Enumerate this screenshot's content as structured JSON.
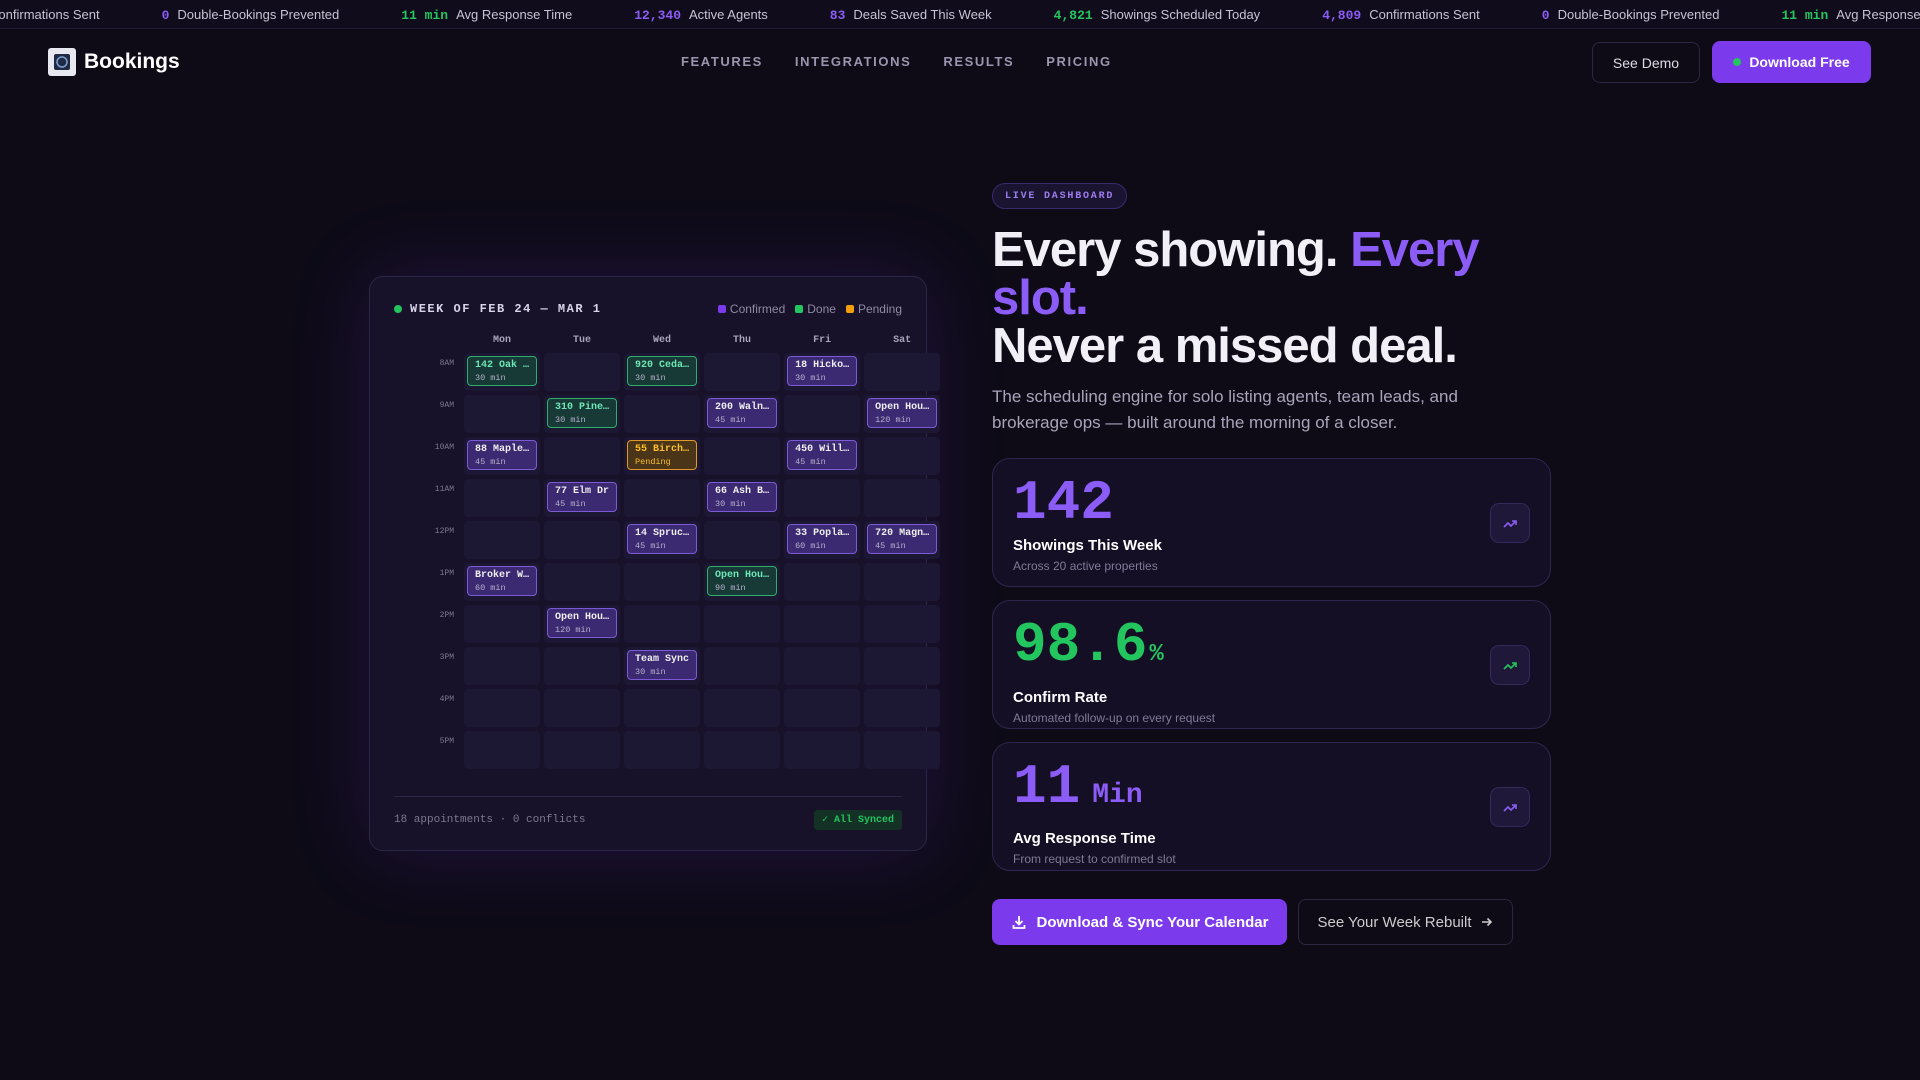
{
  "ticker": [
    {
      "value": "4,809",
      "label": "Confirmations Sent"
    },
    {
      "value": "0",
      "label": "Double-Bookings Prevented"
    },
    {
      "value": "11 min",
      "label": "Avg Response Time"
    },
    {
      "value": "12,340",
      "label": "Active Agents"
    },
    {
      "value": "83",
      "label": "Deals Saved This Week"
    },
    {
      "value": "4,821",
      "label": "Showings Scheduled Today"
    }
  ],
  "nav": {
    "brand": "Bookings",
    "links": [
      "FEATURES",
      "INTEGRATIONS",
      "RESULTS",
      "PRICING"
    ],
    "secondary": "See Demo",
    "primary": "Download Free"
  },
  "calendar": {
    "title": "WEEK OF FEB 24 — MAR 1",
    "legend": [
      {
        "label": "Confirmed",
        "status": "confirmed"
      },
      {
        "label": "Done",
        "status": "done"
      },
      {
        "label": "Pending",
        "status": "pending"
      }
    ],
    "days": [
      "Mon",
      "Tue",
      "Wed",
      "Thu",
      "Fri",
      "Sat"
    ],
    "rows": [
      {
        "time": "8AM",
        "cells": [
          {
            "title": "142 Oak …",
            "detail": "30 min",
            "status": "done"
          },
          null,
          {
            "title": "920 Ceda…",
            "detail": "30 min",
            "status": "done"
          },
          null,
          {
            "title": "18 Hicko…",
            "detail": "30 min",
            "status": "confirmed"
          },
          null
        ]
      },
      {
        "time": "9AM",
        "cells": [
          null,
          {
            "title": "310 Pine…",
            "detail": "30 min",
            "status": "done"
          },
          null,
          {
            "title": "200 Waln…",
            "detail": "45 min",
            "status": "confirmed"
          },
          null,
          {
            "title": "Open Hou…",
            "detail": "120 min",
            "status": "confirmed"
          }
        ]
      },
      {
        "time": "10AM",
        "cells": [
          {
            "title": "88 Maple…",
            "detail": "45 min",
            "status": "confirmed"
          },
          null,
          {
            "title": "55 Birch…",
            "detail": "Pending",
            "status": "pending"
          },
          null,
          {
            "title": "450 Will…",
            "detail": "45 min",
            "status": "confirmed"
          },
          null
        ]
      },
      {
        "time": "11AM",
        "cells": [
          null,
          {
            "title": "77 Elm Dr",
            "detail": "45 min",
            "status": "confirmed"
          },
          null,
          {
            "title": "66 Ash B…",
            "detail": "30 min",
            "status": "confirmed"
          },
          null,
          null
        ]
      },
      {
        "time": "12PM",
        "cells": [
          null,
          null,
          {
            "title": "14 Spruc…",
            "detail": "45 min",
            "status": "confirmed"
          },
          null,
          {
            "title": "33 Popla…",
            "detail": "60 min",
            "status": "confirmed"
          },
          {
            "title": "720 Magn…",
            "detail": "45 min",
            "status": "confirmed"
          }
        ]
      },
      {
        "time": "1PM",
        "cells": [
          {
            "title": "Broker W…",
            "detail": "60 min",
            "status": "confirmed"
          },
          null,
          null,
          {
            "title": "Open Hou…",
            "detail": "90 min",
            "status": "done"
          },
          null,
          null
        ]
      },
      {
        "time": "2PM",
        "cells": [
          null,
          {
            "title": "Open Hou…",
            "detail": "120 min",
            "status": "confirmed"
          },
          null,
          null,
          null,
          null
        ]
      },
      {
        "time": "3PM",
        "cells": [
          null,
          null,
          {
            "title": "Team Sync",
            "detail": "30 min",
            "status": "confirmed"
          },
          null,
          null,
          null
        ]
      },
      {
        "time": "4PM",
        "cells": [
          null,
          null,
          null,
          null,
          null,
          null
        ]
      },
      {
        "time": "5PM",
        "cells": [
          null,
          null,
          null,
          null,
          null,
          null
        ]
      }
    ],
    "footer": "18 appointments · 0 conflicts",
    "sync": "✓ All Synced"
  },
  "hero": {
    "badge": "LIVE DASHBOARD",
    "heading": {
      "lead": "Every showing.",
      "accent": "Every slot.",
      "line2": "Never a missed deal."
    },
    "subtitle": "The scheduling engine for solo listing agents, team leads, and brokerage ops — built around the morning of a closer.",
    "stats": [
      {
        "value": 142,
        "label": "Showings This Week",
        "note": "Across 20 active properties",
        "tone": "purple"
      },
      {
        "value": 98.6,
        "unit": "%",
        "label": "Confirm Rate",
        "note": "Automated follow-up on every request",
        "tone": "green"
      },
      {
        "value": 11,
        "unit": "Min",
        "label": "Avg Response Time",
        "note": "From request to confirmed slot",
        "tone": "purple"
      }
    ],
    "cta_primary": "Download & Sync Your Calendar",
    "cta_secondary": "See Your Week Rebuilt"
  }
}
